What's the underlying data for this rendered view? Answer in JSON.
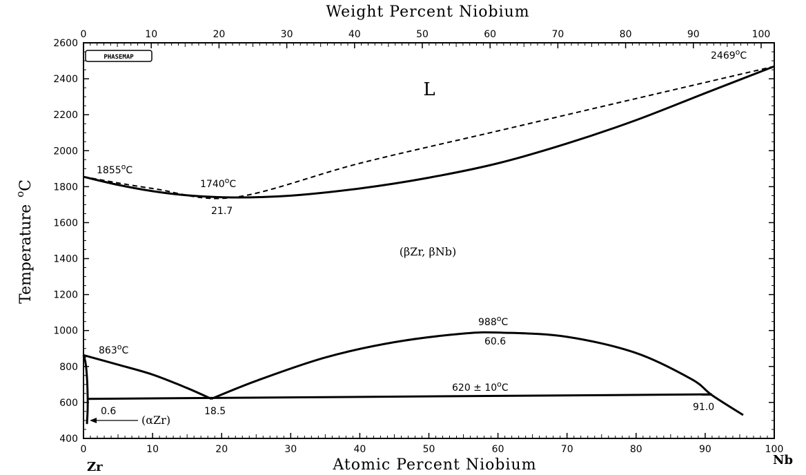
{
  "chart_data": {
    "type": "line",
    "top_xlabel": "Weight Percent Niobium",
    "xlabel": "Atomic Percent Niobium",
    "ylabel": "Temperature",
    "ylabel_unit": "oC",
    "xlim": [
      0,
      100
    ],
    "ylim": [
      400,
      2600
    ],
    "x_ticks": [
      0,
      10,
      20,
      30,
      40,
      50,
      60,
      70,
      80,
      90,
      100
    ],
    "top_x_ticks": [
      0,
      10,
      20,
      30,
      40,
      50,
      60,
      70,
      80,
      90,
      100
    ],
    "y_ticks": [
      400,
      600,
      800,
      1000,
      1200,
      1400,
      1600,
      1800,
      2000,
      2200,
      2400,
      2600
    ],
    "left_element": "Zr",
    "right_element": "Nb",
    "logo": "PHASEMAP",
    "series": [
      {
        "style": "solid",
        "x": [
          0,
          5,
          10,
          15,
          21.7,
          30,
          40,
          50,
          60,
          70,
          80,
          90,
          100
        ],
        "y": [
          1855,
          1810,
          1775,
          1752,
          1740,
          1750,
          1790,
          1850,
          1930,
          2040,
          2170,
          2320,
          2469
        ]
      },
      {
        "style": "dashed",
        "x": [
          0,
          10,
          21.7,
          40,
          60,
          80,
          100
        ],
        "y": [
          1855,
          1790,
          1740,
          1930,
          2110,
          2290,
          2469
        ]
      },
      {
        "style": "solid",
        "x": [
          0,
          5,
          10,
          15,
          18.5
        ],
        "y": [
          863,
          810,
          755,
          680,
          620
        ]
      },
      {
        "style": "solid",
        "x": [
          18.5,
          25,
          35,
          45,
          55,
          60.6,
          70,
          80,
          88,
          91,
          95.5
        ],
        "y": [
          620,
          720,
          850,
          935,
          983,
          988,
          965,
          875,
          730,
          640,
          530
        ]
      },
      {
        "style": "solid",
        "x": [
          0.6,
          91
        ],
        "y": [
          620,
          645
        ]
      },
      {
        "style": "solid",
        "x": [
          0,
          0.3,
          0.5,
          0.6,
          0.6,
          0.5
        ],
        "y": [
          863,
          820,
          740,
          640,
          560,
          480
        ]
      }
    ],
    "annotations": {
      "liquid": "L",
      "beta_region": "(βZr, βNb)",
      "alpha_region": "(αZr)",
      "t_zr_melt": "1855",
      "t_min": "1740",
      "c_min": "21.7",
      "t_nb_melt": "2469",
      "t_zr_trans": "863",
      "t_dome": "988",
      "c_dome": "60.6",
      "t_mono": "620 ± 10",
      "c_eutectoid": "18.5",
      "c_alpha": "0.6",
      "c_beta_nb": "91.0",
      "unit_suffix": "C",
      "degree_mark": "o"
    }
  }
}
